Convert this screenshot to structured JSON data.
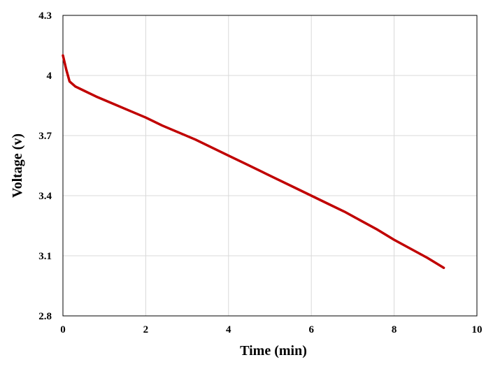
{
  "chart_data": {
    "type": "line",
    "title": "",
    "xlabel": "Time (min)",
    "ylabel": "Voltage (v)",
    "xlim": [
      0,
      10
    ],
    "ylim": [
      2.8,
      4.3
    ],
    "x_ticks": [
      0,
      2,
      4,
      6,
      8,
      10
    ],
    "x_tick_labels": [
      "0",
      "2",
      "4",
      "6",
      "8",
      "10"
    ],
    "y_ticks": [
      2.8,
      3.1,
      3.4,
      3.7,
      4.0,
      4.3
    ],
    "y_tick_labels": [
      "2.8",
      "3.1",
      "3.4",
      "3.7",
      "4",
      "4.3"
    ],
    "grid": true,
    "legend": "none",
    "series_color": "#c00000",
    "grid_color": "#d9d9d9",
    "series": [
      {
        "x": [
          0.0,
          0.08,
          0.16,
          0.3,
          0.5,
          0.8,
          1.2,
          1.6,
          2.0,
          2.4,
          2.8,
          3.2,
          3.6,
          4.0,
          4.4,
          4.8,
          5.2,
          5.6,
          6.0,
          6.4,
          6.8,
          7.2,
          7.6,
          8.0,
          8.4,
          8.8,
          9.2
        ],
        "y": [
          4.1,
          4.03,
          3.97,
          3.945,
          3.925,
          3.895,
          3.86,
          3.825,
          3.79,
          3.75,
          3.715,
          3.68,
          3.64,
          3.6,
          3.56,
          3.52,
          3.48,
          3.44,
          3.4,
          3.36,
          3.32,
          3.275,
          3.23,
          3.18,
          3.135,
          3.09,
          3.04
        ]
      }
    ]
  }
}
